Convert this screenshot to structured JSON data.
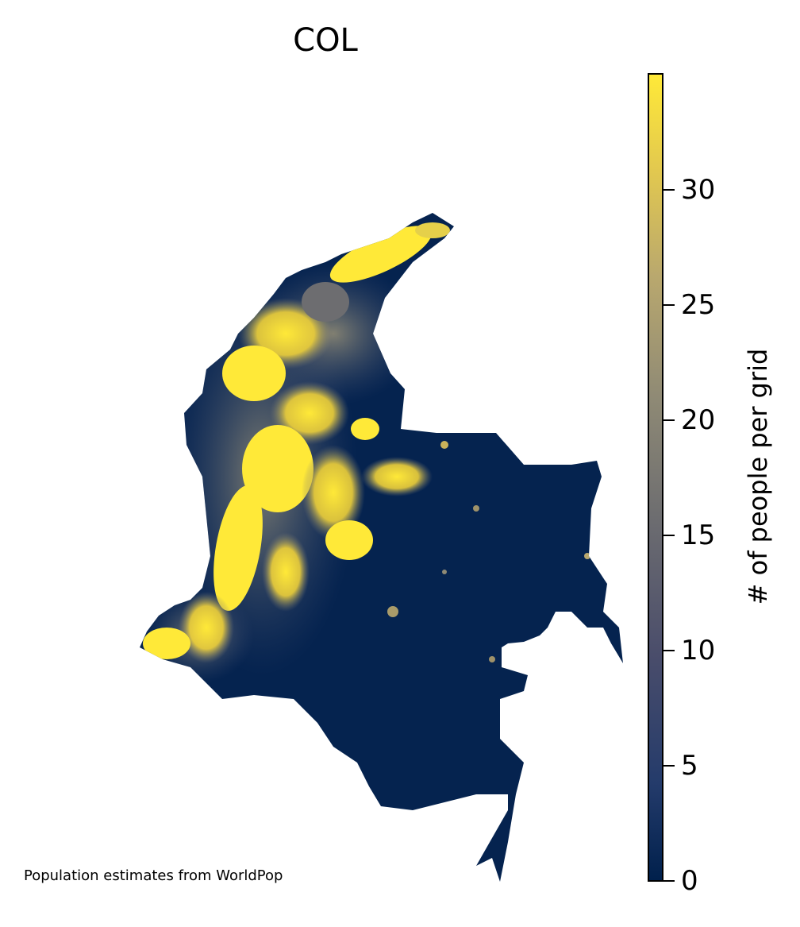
{
  "title": "COL",
  "source_note": "Population estimates from WorldPop",
  "colorbar": {
    "label": "# of people per grid",
    "ticks": [
      "0",
      "5",
      "10",
      "15",
      "20",
      "25",
      "30"
    ],
    "min": 0,
    "max": 35,
    "colors": {
      "low": "#00204c",
      "mid": "#7c7b78",
      "high": "#ffe938"
    }
  }
}
